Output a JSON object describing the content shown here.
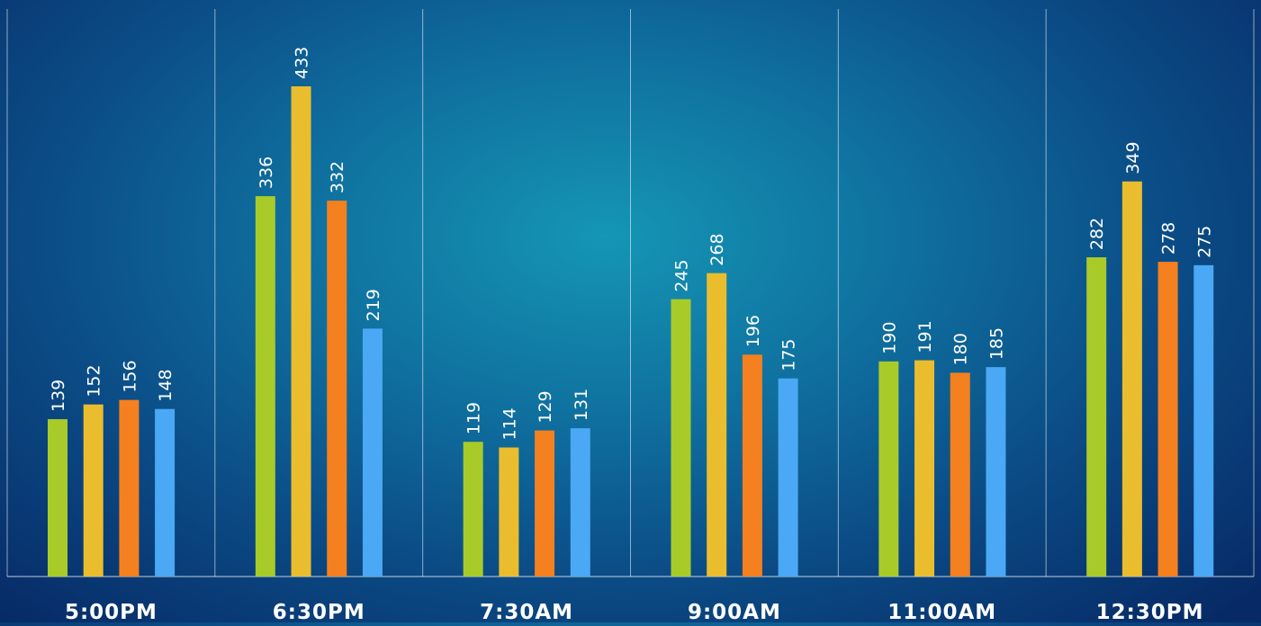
{
  "chart_data": {
    "type": "bar",
    "categories": [
      "5:00PM",
      "6:30PM",
      "7:30AM",
      "9:00AM",
      "11:00AM",
      "12:30PM"
    ],
    "series": [
      {
        "values": [
          139,
          336,
          119,
          245,
          190,
          282
        ],
        "color": "#a8cb2a"
      },
      {
        "values": [
          152,
          433,
          114,
          268,
          191,
          349
        ],
        "color": "#eabd2e"
      },
      {
        "values": [
          156,
          332,
          129,
          196,
          180,
          278
        ],
        "color": "#f5801f"
      },
      {
        "values": [
          148,
          219,
          131,
          175,
          185,
          275
        ],
        "color": "#4aa8f5"
      }
    ],
    "title": "",
    "xlabel": "",
    "ylabel": "",
    "ylim": [
      0,
      470
    ],
    "grid": false,
    "data_labels": true,
    "background": "#0f6f9e"
  }
}
